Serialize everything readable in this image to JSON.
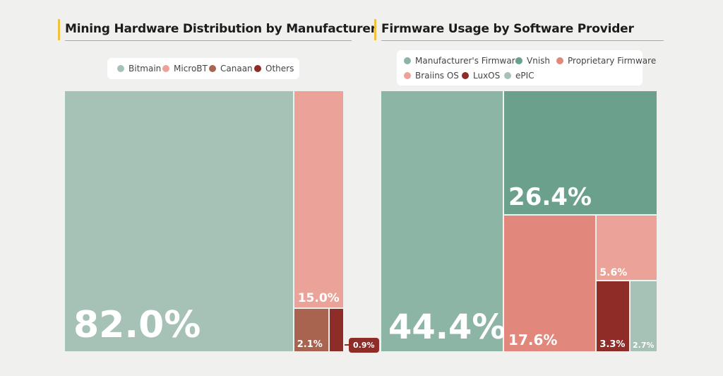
{
  "chart_data": [
    {
      "type": "treemap",
      "title": "Mining Hardware Distribution by Manufacturer",
      "legend_placement": "top-center",
      "series": [
        {
          "name": "Bitmain",
          "value": 82.0,
          "label": "82.0%",
          "color": "#a6c1b5"
        },
        {
          "name": "MicroBT",
          "value": 15.0,
          "label": "15.0%",
          "color": "#eba399"
        },
        {
          "name": "Canaan",
          "value": 2.1,
          "label": "2.1%",
          "color": "#a9644f"
        },
        {
          "name": "Others",
          "value": 0.9,
          "label": "0.9%",
          "color": "#8e2c28"
        }
      ]
    },
    {
      "type": "treemap",
      "title": "Firmware Usage by Software Provider",
      "legend_placement": "top-center",
      "series": [
        {
          "name": "Manufacturer's Firmware",
          "value": 44.4,
          "label": "44.4%",
          "color": "#8db5a6"
        },
        {
          "name": "Vnish",
          "value": 26.4,
          "label": "26.4%",
          "color": "#6aa08c"
        },
        {
          "name": "Proprietary Firmware",
          "value": 17.6,
          "label": "17.6%",
          "color": "#e2877b"
        },
        {
          "name": "Braiins OS",
          "value": 5.6,
          "label": "5.6%",
          "color": "#eba399"
        },
        {
          "name": "LuxOS",
          "value": 3.3,
          "label": "3.3%",
          "color": "#8e2c28"
        },
        {
          "name": "ePIC",
          "value": 2.7,
          "label": "2.7%",
          "color": "#a6c1b5"
        }
      ]
    }
  ]
}
